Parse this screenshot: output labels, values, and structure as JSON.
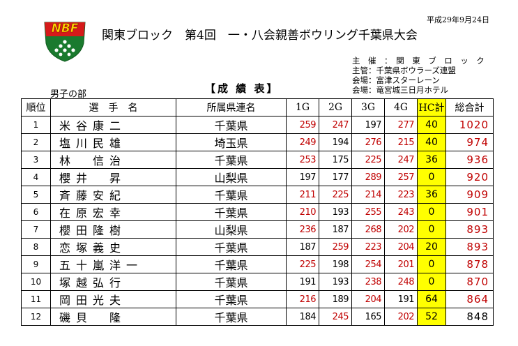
{
  "logo": {
    "text": "NBF"
  },
  "header": {
    "title": "関東ブロック　第4回　一・八会親善ボウリング千葉県大会",
    "date": "平成29年9月24日",
    "organizers": [
      "主　催　：　関　東　ブ　ロ　ッ　ク",
      "主管：千葉県ボウラーズ連盟",
      "会場：富津スターレーン",
      "会場：竜宮城三日月ホテル"
    ],
    "subtitle": "【成 績 表】",
    "division": "男子の部"
  },
  "table": {
    "headers": [
      "順位",
      "選　手　名",
      "所属県連名",
      "1G",
      "2G",
      "3G",
      "4G",
      "HC計",
      "総合計"
    ],
    "rows": [
      {
        "rank": "1",
        "name": "米谷康二",
        "pref": "千葉県",
        "g": [
          "259",
          "247",
          "197",
          "277"
        ],
        "gc": [
          "red",
          "red",
          "black",
          "red"
        ],
        "hc": "40",
        "total": "1020",
        "tc": "red"
      },
      {
        "rank": "2",
        "name": "塩川民雄",
        "pref": "埼玉県",
        "g": [
          "249",
          "194",
          "276",
          "215"
        ],
        "gc": [
          "red",
          "black",
          "red",
          "red"
        ],
        "hc": "40",
        "total": "974",
        "tc": "red"
      },
      {
        "rank": "3",
        "name": "林　信治",
        "pref": "千葉県",
        "g": [
          "253",
          "175",
          "225",
          "247"
        ],
        "gc": [
          "red",
          "black",
          "red",
          "red"
        ],
        "hc": "36",
        "total": "936",
        "tc": "red"
      },
      {
        "rank": "4",
        "name": "櫻井　昇",
        "pref": "山梨県",
        "g": [
          "197",
          "177",
          "289",
          "257"
        ],
        "gc": [
          "black",
          "black",
          "red",
          "red"
        ],
        "hc": "0",
        "total": "920",
        "tc": "red"
      },
      {
        "rank": "5",
        "name": "斉藤安紀",
        "pref": "千葉県",
        "g": [
          "211",
          "225",
          "214",
          "223"
        ],
        "gc": [
          "red",
          "red",
          "red",
          "red"
        ],
        "hc": "36",
        "total": "909",
        "tc": "red"
      },
      {
        "rank": "6",
        "name": "在原宏幸",
        "pref": "千葉県",
        "g": [
          "210",
          "193",
          "255",
          "243"
        ],
        "gc": [
          "red",
          "black",
          "red",
          "red"
        ],
        "hc": "0",
        "total": "901",
        "tc": "red"
      },
      {
        "rank": "7",
        "name": "櫻田隆樹",
        "pref": "山梨県",
        "g": [
          "236",
          "187",
          "268",
          "202"
        ],
        "gc": [
          "red",
          "black",
          "red",
          "red"
        ],
        "hc": "0",
        "total": "893",
        "tc": "red"
      },
      {
        "rank": "8",
        "name": "恋塚義史",
        "pref": "千葉県",
        "g": [
          "187",
          "259",
          "223",
          "204"
        ],
        "gc": [
          "black",
          "red",
          "red",
          "red"
        ],
        "hc": "20",
        "total": "893",
        "tc": "red"
      },
      {
        "rank": "9",
        "name": "五十嵐洋一",
        "pref": "千葉県",
        "g": [
          "225",
          "198",
          "254",
          "201"
        ],
        "gc": [
          "red",
          "black",
          "red",
          "red"
        ],
        "hc": "0",
        "total": "878",
        "tc": "red"
      },
      {
        "rank": "10",
        "name": "塚越弘行",
        "pref": "千葉県",
        "g": [
          "191",
          "193",
          "238",
          "248"
        ],
        "gc": [
          "black",
          "black",
          "red",
          "red"
        ],
        "hc": "0",
        "total": "870",
        "tc": "red"
      },
      {
        "rank": "11",
        "name": "岡田光夫",
        "pref": "千葉県",
        "g": [
          "216",
          "189",
          "204",
          "191"
        ],
        "gc": [
          "red",
          "black",
          "red",
          "black"
        ],
        "hc": "64",
        "total": "864",
        "tc": "red"
      },
      {
        "rank": "12",
        "name": "磯貝　隆",
        "pref": "千葉県",
        "g": [
          "184",
          "245",
          "165",
          "202"
        ],
        "gc": [
          "black",
          "red",
          "black",
          "red"
        ],
        "hc": "52",
        "total": "848",
        "tc": "black"
      }
    ]
  },
  "colors": {
    "red": "#c00000",
    "hc_highlight": "#ffff00",
    "logo_green": "#1a7a2e",
    "logo_red": "#d61a1a"
  }
}
